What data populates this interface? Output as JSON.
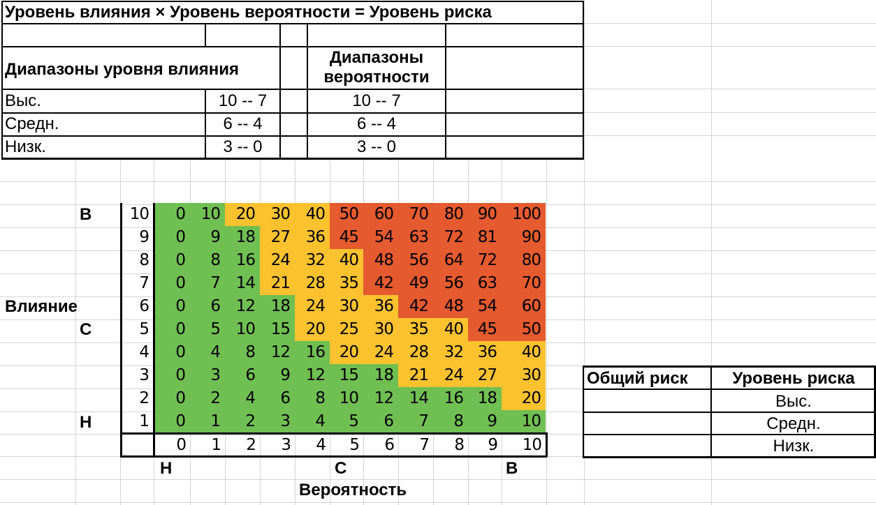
{
  "title": "Уровень влияния × Уровень вероятности = Уровень риска",
  "ranges": {
    "impact_header": "Диапазоны уровня влияния",
    "probability_header_line1": "Диапазоны",
    "probability_header_line2": "вероятности",
    "rows": [
      {
        "label": "Выс.",
        "impact": "10 -- 7",
        "probability": "10 -- 7"
      },
      {
        "label": "Средн.",
        "impact": "6 -- 4",
        "probability": "6 -- 4"
      },
      {
        "label": "Низк.",
        "impact": "3 -- 0",
        "probability": "3 -- 0"
      }
    ]
  },
  "matrix": {
    "impact_axis_label": "Влияние",
    "probability_axis_label": "Вероятность",
    "impact_level_high": "В",
    "impact_level_mid": "С",
    "impact_level_low": "Н",
    "prob_level_low": "Н",
    "prob_level_mid": "С",
    "prob_level_high": "В",
    "impact_values": [
      "10",
      "9",
      "8",
      "7",
      "6",
      "5",
      "4",
      "3",
      "2",
      "1"
    ],
    "probability_values": [
      "0",
      "1",
      "2",
      "3",
      "4",
      "5",
      "6",
      "7",
      "8",
      "9",
      "10"
    ],
    "colors": {
      "green": "#70bf52",
      "yellow": "#fec22e",
      "red": "#e55a2e"
    },
    "rows": [
      {
        "values": [
          "0",
          "10",
          "20",
          "30",
          "40",
          "50",
          "60",
          "70",
          "80",
          "90",
          "100"
        ],
        "levels": [
          "g",
          "g",
          "y",
          "y",
          "y",
          "r",
          "r",
          "r",
          "r",
          "r",
          "r"
        ]
      },
      {
        "values": [
          "0",
          "9",
          "18",
          "27",
          "36",
          "45",
          "54",
          "63",
          "72",
          "81",
          "90"
        ],
        "levels": [
          "g",
          "g",
          "g",
          "y",
          "y",
          "r",
          "r",
          "r",
          "r",
          "r",
          "r"
        ]
      },
      {
        "values": [
          "0",
          "8",
          "16",
          "24",
          "32",
          "40",
          "48",
          "56",
          "64",
          "72",
          "80"
        ],
        "levels": [
          "g",
          "g",
          "g",
          "y",
          "y",
          "y",
          "r",
          "r",
          "r",
          "r",
          "r"
        ]
      },
      {
        "values": [
          "0",
          "7",
          "14",
          "21",
          "28",
          "35",
          "42",
          "49",
          "56",
          "63",
          "70"
        ],
        "levels": [
          "g",
          "g",
          "g",
          "y",
          "y",
          "y",
          "r",
          "r",
          "r",
          "r",
          "r"
        ]
      },
      {
        "values": [
          "0",
          "6",
          "12",
          "18",
          "24",
          "30",
          "36",
          "42",
          "48",
          "54",
          "60"
        ],
        "levels": [
          "g",
          "g",
          "g",
          "g",
          "y",
          "y",
          "y",
          "r",
          "r",
          "r",
          "r"
        ]
      },
      {
        "values": [
          "0",
          "5",
          "10",
          "15",
          "20",
          "25",
          "30",
          "35",
          "40",
          "45",
          "50"
        ],
        "levels": [
          "g",
          "g",
          "g",
          "g",
          "y",
          "y",
          "y",
          "y",
          "y",
          "r",
          "r"
        ]
      },
      {
        "values": [
          "0",
          "4",
          "8",
          "12",
          "16",
          "20",
          "24",
          "28",
          "32",
          "36",
          "40"
        ],
        "levels": [
          "g",
          "g",
          "g",
          "g",
          "g",
          "y",
          "y",
          "y",
          "y",
          "y",
          "y"
        ]
      },
      {
        "values": [
          "0",
          "3",
          "6",
          "9",
          "12",
          "15",
          "18",
          "21",
          "24",
          "27",
          "30"
        ],
        "levels": [
          "g",
          "g",
          "g",
          "g",
          "g",
          "g",
          "g",
          "y",
          "y",
          "y",
          "y"
        ]
      },
      {
        "values": [
          "0",
          "2",
          "4",
          "6",
          "8",
          "10",
          "12",
          "14",
          "16",
          "18",
          "20"
        ],
        "levels": [
          "g",
          "g",
          "g",
          "g",
          "g",
          "g",
          "g",
          "g",
          "g",
          "g",
          "y"
        ]
      },
      {
        "values": [
          "0",
          "1",
          "2",
          "3",
          "4",
          "5",
          "6",
          "7",
          "8",
          "9",
          "10"
        ],
        "levels": [
          "g",
          "g",
          "g",
          "g",
          "g",
          "g",
          "g",
          "g",
          "g",
          "g",
          "g"
        ]
      }
    ]
  },
  "overall": {
    "col1_header": "Общий риск",
    "col2_header": "Уровень риска",
    "rows": [
      {
        "total": "",
        "level": "Выс."
      },
      {
        "total": "",
        "level": "Средн."
      },
      {
        "total": "",
        "level": "Низк."
      }
    ]
  }
}
